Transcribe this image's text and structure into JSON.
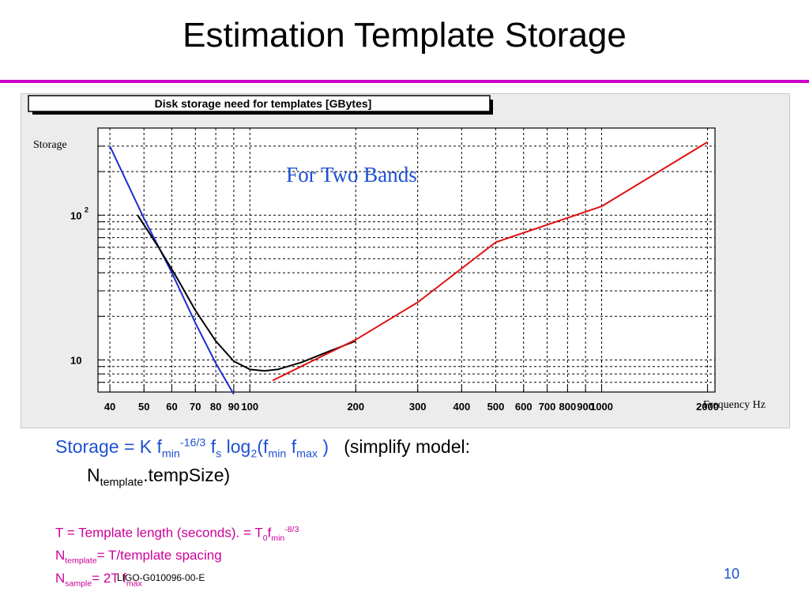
{
  "slide": {
    "title": "Estimation Template Storage",
    "page_number": "10",
    "footer_id": "LIGO-G010096-00-E"
  },
  "colors": {
    "title_rule": "#cc00cc",
    "formula_blue": "#1e50d2",
    "notes_magenta": "#cc0099",
    "series_black": "#000000",
    "series_blue": "#1a2fd0",
    "series_red": "#e01010"
  },
  "chart_data": {
    "type": "line",
    "title": "Disk storage need for templates [GBytes]",
    "ylabel": "Storage",
    "xlabel": "Frequency Hz",
    "annotation": "For Two Bands",
    "x_scale": "log",
    "y_scale": "log",
    "xlim": [
      37,
      2100
    ],
    "ylim": [
      6,
      400
    ],
    "grid": true,
    "x_tick_labels": [
      "40",
      "50",
      "60",
      "70",
      "80",
      "90",
      "100",
      "200",
      "300",
      "400",
      "500",
      "600",
      "700",
      "800",
      "900",
      "1000",
      "2000"
    ],
    "y_tick_labels": [
      {
        "value": 10,
        "base": "10",
        "exp": ""
      },
      {
        "value": 100,
        "base": "10",
        "exp": "2"
      }
    ],
    "series": [
      {
        "color": "#1a2fd0",
        "x": [
          40,
          50,
          60,
          70,
          80,
          90
        ],
        "y": [
          300,
          95,
          40,
          18,
          9.5,
          5.8
        ]
      },
      {
        "color": "#000000",
        "x": [
          48,
          55,
          62,
          70,
          80,
          90,
          100,
          110,
          120,
          140,
          170,
          200
        ],
        "y": [
          100,
          60,
          37,
          22,
          13.5,
          9.8,
          8.6,
          8.4,
          8.6,
          9.6,
          11.6,
          13.5
        ]
      },
      {
        "color": "#e01010",
        "x": [
          116,
          150,
          200,
          300,
          500,
          1000,
          2000
        ],
        "y": [
          7.2,
          9.8,
          13.8,
          25,
          65,
          115,
          320
        ]
      }
    ]
  },
  "formula": {
    "lhs": "Storage = K f",
    "fmin_sub": "min",
    "exp": "-16/3",
    "fs_base": " f",
    "fs_sub": "s",
    "log_text": " log",
    "log_sub": "2",
    "open": "(f",
    "fmin2_sub": "min",
    "fmax_base": " f",
    "fmax_sub": "max",
    "close": " )",
    "simplify": "   (simplify model:",
    "cont_N": "N",
    "cont_sub": "template",
    "cont_rest": ".tempSize)"
  },
  "notes": {
    "line1_text": "T = Template length (seconds). = T",
    "line1_sub0": "0",
    "line1_f": "f",
    "line1_sub_min": "min",
    "line1_exp": "-8/3",
    "line2_N": "N",
    "line2_sub": "template",
    "line2_rest": "= T/template spacing",
    "line3_N": "N",
    "line3_sub": "sample",
    "line3_rest": "= 2T f",
    "line3_sub_max": "max"
  }
}
